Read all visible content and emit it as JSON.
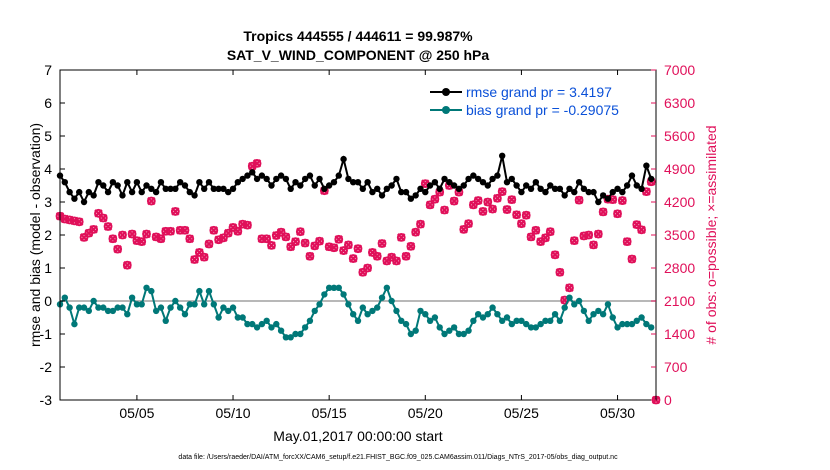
{
  "chart_data": {
    "type": "line",
    "title": "Tropics 444555 / 444611 = 99.987%",
    "subtitle": "SAT_V_WIND_COMPONENT @ 250 hPa",
    "xlabel": "May.01,2017 00:00:00 start",
    "ylabel": "rmse and bias (model - observation)",
    "y2label": "# of obs: o=possible; ×=assimilated",
    "footer": "data file: /Users/raeder/DAI/ATM_forcXX/CAM6_setup/f.e21.FHIST_BGC.f09_025.CAM6assim.011/Diags_NTrS_2017-05/obs_diag_output.nc",
    "xlim": [
      1,
      32
    ],
    "ylim": [
      -3,
      7
    ],
    "y2lim": [
      0,
      7000
    ],
    "x_ticks": [
      5,
      10,
      15,
      20,
      25,
      30
    ],
    "x_tick_labels": [
      "05/05",
      "05/10",
      "05/15",
      "05/20",
      "05/25",
      "05/30"
    ],
    "y_ticks": [
      -3,
      -2,
      -1,
      0,
      1,
      2,
      3,
      4,
      5,
      6,
      7
    ],
    "y_tick_labels": [
      "-3",
      "-2",
      "-1",
      "0",
      "1",
      "2",
      "3",
      "4",
      "5",
      "6",
      "7"
    ],
    "y2_ticks": [
      0,
      700,
      1400,
      2100,
      2800,
      3500,
      4200,
      4900,
      5600,
      6300,
      7000
    ],
    "y2_tick_labels": [
      "0",
      "700",
      "1400",
      "2100",
      "2800",
      "3500",
      "4200",
      "4900",
      "5600",
      "6300",
      "7000"
    ],
    "legend_position": "top-right",
    "x": [
      1.0,
      1.25,
      1.5,
      1.75,
      2.0,
      2.25,
      2.5,
      2.75,
      3.0,
      3.25,
      3.5,
      3.75,
      4.0,
      4.25,
      4.5,
      4.75,
      5.0,
      5.25,
      5.5,
      5.75,
      6.0,
      6.25,
      6.5,
      6.75,
      7.0,
      7.25,
      7.5,
      7.75,
      8.0,
      8.25,
      8.5,
      8.75,
      9.0,
      9.25,
      9.5,
      9.75,
      10.0,
      10.25,
      10.5,
      10.75,
      11.0,
      11.25,
      11.5,
      11.75,
      12.0,
      12.25,
      12.5,
      12.75,
      13.0,
      13.25,
      13.5,
      13.75,
      14.0,
      14.25,
      14.5,
      14.75,
      15.0,
      15.25,
      15.5,
      15.75,
      16.0,
      16.25,
      16.5,
      16.75,
      17.0,
      17.25,
      17.5,
      17.75,
      18.0,
      18.25,
      18.5,
      18.75,
      19.0,
      19.25,
      19.5,
      19.75,
      20.0,
      20.25,
      20.5,
      20.75,
      21.0,
      21.25,
      21.5,
      21.75,
      22.0,
      22.25,
      22.5,
      22.75,
      23.0,
      23.25,
      23.5,
      23.75,
      24.0,
      24.25,
      24.5,
      24.75,
      25.0,
      25.25,
      25.5,
      25.75,
      26.0,
      26.25,
      26.5,
      26.75,
      27.0,
      27.25,
      27.5,
      27.75,
      28.0,
      28.25,
      28.5,
      28.75,
      29.0,
      29.25,
      29.5,
      29.75,
      30.0,
      30.25,
      30.5,
      30.75,
      31.0,
      31.25,
      31.5,
      31.75
    ],
    "series": [
      {
        "name": "rmse grand pr = 3.4197",
        "color": "#000000",
        "axis": "left",
        "marker": "dot",
        "line": true,
        "values": [
          3.8,
          3.6,
          3.3,
          3.1,
          3.3,
          3.0,
          3.3,
          3.2,
          3.6,
          3.5,
          3.3,
          3.6,
          3.5,
          3.2,
          3.6,
          3.3,
          3.6,
          3.3,
          3.5,
          3.4,
          3.3,
          3.6,
          3.4,
          3.4,
          3.4,
          3.6,
          3.5,
          3.3,
          3.2,
          3.6,
          3.4,
          3.6,
          3.4,
          3.4,
          3.4,
          3.3,
          3.4,
          3.6,
          3.7,
          3.8,
          3.9,
          3.7,
          3.8,
          3.7,
          3.5,
          3.7,
          3.8,
          3.7,
          3.4,
          3.6,
          3.5,
          3.7,
          3.8,
          3.5,
          3.7,
          3.4,
          3.5,
          3.6,
          3.8,
          4.3,
          3.7,
          3.6,
          3.6,
          3.4,
          3.6,
          3.3,
          3.4,
          3.2,
          3.4,
          3.5,
          3.7,
          3.3,
          3.3,
          3.1,
          3.2,
          3.4,
          3.3,
          3.5,
          3.6,
          3.4,
          3.7,
          3.6,
          3.5,
          3.4,
          3.5,
          3.7,
          3.8,
          3.7,
          3.6,
          3.5,
          3.7,
          3.8,
          4.4,
          3.6,
          3.7,
          3.5,
          3.3,
          3.5,
          3.4,
          3.6,
          3.4,
          3.3,
          3.5,
          3.4,
          3.4,
          3.2,
          3.4,
          3.3,
          3.6,
          3.4,
          3.3,
          3.3,
          3.0,
          3.2,
          3.1,
          3.3,
          3.4,
          3.3,
          3.5,
          3.8,
          3.5,
          3.4,
          4.1,
          3.7
        ]
      },
      {
        "name": "bias grand pr = -0.29075",
        "color": "#007878",
        "axis": "left",
        "marker": "dot",
        "line": true,
        "values": [
          -0.1,
          0.1,
          -0.2,
          -0.7,
          -0.2,
          -0.2,
          -0.3,
          0.0,
          -0.2,
          -0.2,
          -0.3,
          -0.3,
          -0.2,
          -0.2,
          -0.4,
          0.1,
          -0.1,
          -0.1,
          0.4,
          0.3,
          -0.3,
          -0.2,
          -0.6,
          -0.2,
          0.0,
          -0.2,
          -0.4,
          -0.1,
          -0.1,
          0.3,
          -0.1,
          0.3,
          -0.1,
          -0.5,
          -0.2,
          -0.3,
          -0.2,
          -0.5,
          -0.5,
          -0.7,
          -0.7,
          -0.8,
          -0.7,
          -0.6,
          -0.8,
          -0.7,
          -0.9,
          -1.1,
          -1.1,
          -1.0,
          -1.0,
          -0.8,
          -0.6,
          -0.3,
          -0.1,
          0.2,
          0.4,
          0.4,
          0.4,
          0.2,
          -0.1,
          -0.4,
          -0.6,
          -0.2,
          -0.4,
          -0.3,
          -0.2,
          0.1,
          0.4,
          0.0,
          -0.3,
          -0.6,
          -0.7,
          -1.0,
          -0.9,
          -0.3,
          -0.4,
          -0.6,
          -0.5,
          -0.8,
          -1.0,
          -0.9,
          -0.8,
          -1.0,
          -1.0,
          -0.9,
          -0.6,
          -0.4,
          -0.5,
          -0.4,
          -0.2,
          -0.4,
          -0.6,
          -0.5,
          -0.7,
          -0.6,
          -0.6,
          -0.7,
          -0.8,
          -0.8,
          -0.7,
          -0.6,
          -0.6,
          -0.4,
          -0.6,
          -0.2,
          0.1,
          -0.1,
          0.0,
          -0.3,
          -0.6,
          -0.4,
          -0.3,
          -0.4,
          -0.1,
          -0.5,
          -0.8,
          -0.7,
          -0.7,
          -0.7,
          -0.6,
          -0.5,
          -0.7,
          -0.8
        ]
      },
      {
        "name": "obs possible",
        "color": "#e0105a",
        "axis": "right",
        "marker": "circle-outline",
        "line": false,
        "values": [
          3900,
          3840,
          3820,
          3800,
          3780,
          3450,
          3540,
          3620,
          3960,
          3860,
          3680,
          3420,
          3200,
          3500,
          2860,
          3520,
          3380,
          3360,
          3520,
          4220,
          3460,
          3420,
          3580,
          3580,
          4000,
          3600,
          3600,
          3420,
          2980,
          3130,
          3030,
          3310,
          3600,
          3400,
          3440,
          3540,
          3660,
          3580,
          3730,
          3710,
          4960,
          5020,
          3420,
          3420,
          3280,
          3490,
          3560,
          3460,
          3250,
          3360,
          3570,
          3330,
          3050,
          3270,
          3370,
          4440,
          3250,
          3230,
          3410,
          3170,
          3290,
          3000,
          3210,
          2710,
          2800,
          3130,
          3050,
          3320,
          2950,
          3030,
          2950,
          3450,
          3050,
          3260,
          3560,
          3730,
          4590,
          4140,
          4260,
          4410,
          4030,
          4550,
          4220,
          4410,
          3620,
          3740,
          4140,
          4230,
          4000,
          4200,
          4050,
          4280,
          4420,
          4040,
          4250,
          3930,
          3740,
          3920,
          3460,
          3600,
          3360,
          3440,
          3570,
          3080,
          2710,
          2120,
          2380,
          3380,
          4240,
          3480,
          3500,
          3290,
          3520,
          3990,
          4260,
          4250,
          3950,
          4230,
          3360,
          2990,
          3720,
          3610,
          4420,
          4630
        ]
      },
      {
        "name": "obs assimilated",
        "color": "#e0105a",
        "axis": "right",
        "marker": "x",
        "line": false,
        "values": [
          3900,
          3840,
          3820,
          3800,
          3780,
          3450,
          3540,
          3620,
          3960,
          3860,
          3680,
          3420,
          3200,
          3500,
          2860,
          3520,
          3380,
          3360,
          3520,
          4220,
          3460,
          3420,
          3580,
          3580,
          4000,
          3600,
          3600,
          3420,
          2980,
          3130,
          3030,
          3310,
          3600,
          3400,
          3440,
          3540,
          3660,
          3580,
          3730,
          3710,
          4960,
          5020,
          3420,
          3420,
          3280,
          3490,
          3560,
          3460,
          3250,
          3360,
          3570,
          3330,
          3050,
          3270,
          3370,
          4440,
          3250,
          3230,
          3410,
          3170,
          3290,
          3000,
          3210,
          2710,
          2800,
          3130,
          3050,
          3320,
          2950,
          3030,
          2950,
          3450,
          3050,
          3260,
          3560,
          3730,
          4590,
          4140,
          4260,
          4410,
          4030,
          4550,
          4220,
          4410,
          3620,
          3740,
          4140,
          4230,
          4000,
          4200,
          4050,
          4280,
          4420,
          4040,
          4250,
          3930,
          3740,
          3920,
          3460,
          3600,
          3360,
          3440,
          3570,
          3080,
          2710,
          2120,
          2380,
          3380,
          4240,
          3480,
          3500,
          3290,
          3520,
          3990,
          4260,
          4250,
          3950,
          4230,
          3360,
          2990,
          3720,
          3610,
          4420,
          4630
        ]
      }
    ],
    "extra_right_point": {
      "x": 32,
      "value": 0
    }
  }
}
